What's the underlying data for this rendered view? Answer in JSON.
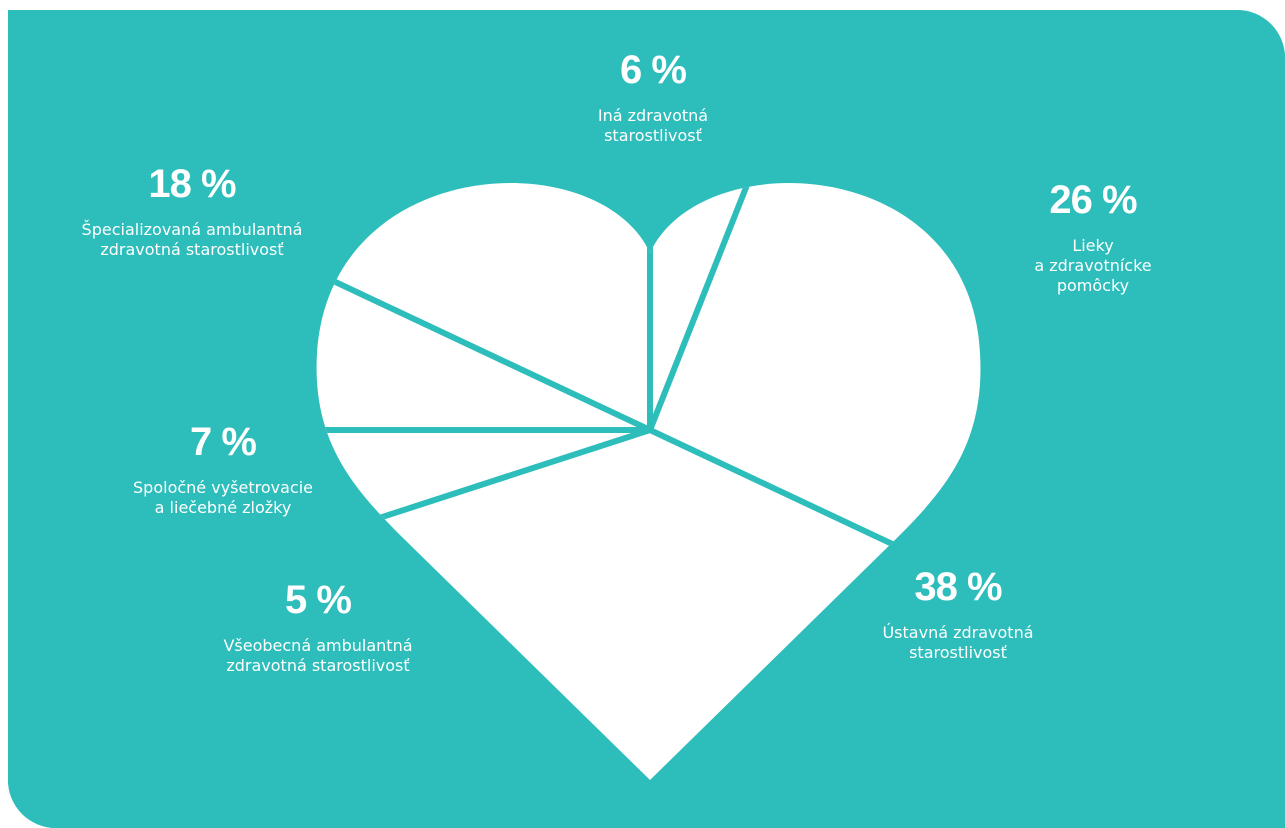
{
  "colors": {
    "background": "#2dbdbb",
    "heart": "#ffffff",
    "text": "#ffffff"
  },
  "chart_data": {
    "type": "pie",
    "shape": "heart",
    "unit": "%",
    "slices": [
      {
        "label": "Iná zdravotná starostlivosť",
        "value": 6,
        "value_label": "6 %",
        "label_lines": [
          "Iná zdravotná",
          "starostlivosť"
        ]
      },
      {
        "label": "Lieky a zdravotnícke pomôcky",
        "value": 26,
        "value_label": "26 %",
        "label_lines": [
          "Lieky",
          "a zdravotnícke",
          "pomôcky"
        ]
      },
      {
        "label": "Ústavná zdravotná starostlivosť",
        "value": 38,
        "value_label": "38 %",
        "label_lines": [
          "Ústavná zdravotná",
          "starostlivosť"
        ]
      },
      {
        "label": "Všeobecná ambulantná zdravotná starostlivosť",
        "value": 5,
        "value_label": "5 %",
        "label_lines": [
          "Všeobecná ambulantná",
          "zdravotná starostlivosť"
        ]
      },
      {
        "label": "Spoločné vyšetrovacie a liečebné zložky",
        "value": 7,
        "value_label": "7 %",
        "label_lines": [
          "Spoločné vyšetrovacie",
          "a liečebné zložky"
        ]
      },
      {
        "label": "Špecializovaná ambulantná zdravotná starostlivosť",
        "value": 18,
        "value_label": "18 %",
        "label_lines": [
          "Špecializovaná ambulantná",
          "zdravotná starostlivosť"
        ]
      }
    ]
  }
}
